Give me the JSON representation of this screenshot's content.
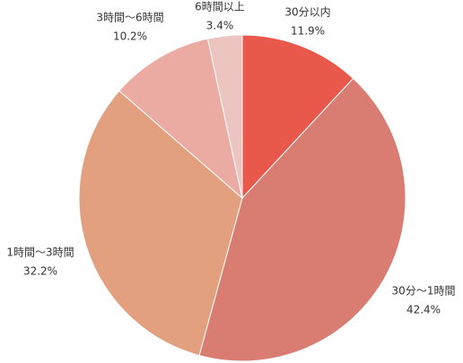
{
  "chart_data": {
    "type": "pie",
    "categories": [
      "30分以内",
      "30分〜1時間",
      "1時間〜3時間",
      "3時間〜6時間",
      "6時間以上"
    ],
    "values": [
      11.9,
      42.4,
      32.2,
      10.2,
      3.4
    ],
    "value_labels": [
      "11.9%",
      "42.4%",
      "32.2%",
      "10.2%",
      "3.4%"
    ],
    "colors": [
      "#e8594b",
      "#d97d73",
      "#e3a07f",
      "#ebaaa2",
      "#ecc4c0"
    ]
  }
}
